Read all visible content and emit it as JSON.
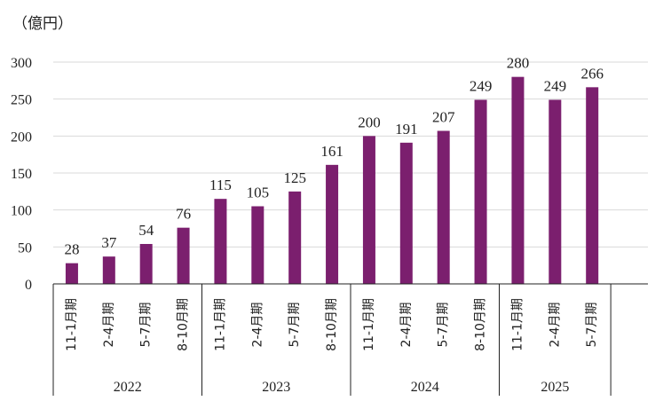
{
  "chart_data": {
    "type": "bar",
    "unit_label": "（億円）",
    "ylim": [
      0,
      300
    ],
    "y_ticks": [
      0,
      50,
      100,
      150,
      200,
      250,
      300
    ],
    "grid": true,
    "bar_color": "#7b1f6e",
    "categories": [
      "11-1月期",
      "2-4月期",
      "5-7月期",
      "8-10月期",
      "11-1月期",
      "2-4月期",
      "5-7月期",
      "8-10月期",
      "11-1月期",
      "2-4月期",
      "5-7月期",
      "8-10月期",
      "11-1月期",
      "2-4月期",
      "5-7月期"
    ],
    "values": [
      28,
      37,
      54,
      76,
      115,
      105,
      125,
      161,
      200,
      191,
      207,
      249,
      280,
      249,
      266
    ],
    "groups": [
      {
        "label": "2022",
        "count": 4
      },
      {
        "label": "2023",
        "count": 4
      },
      {
        "label": "2024",
        "count": 4
      },
      {
        "label": "2025",
        "count": 3
      }
    ]
  }
}
